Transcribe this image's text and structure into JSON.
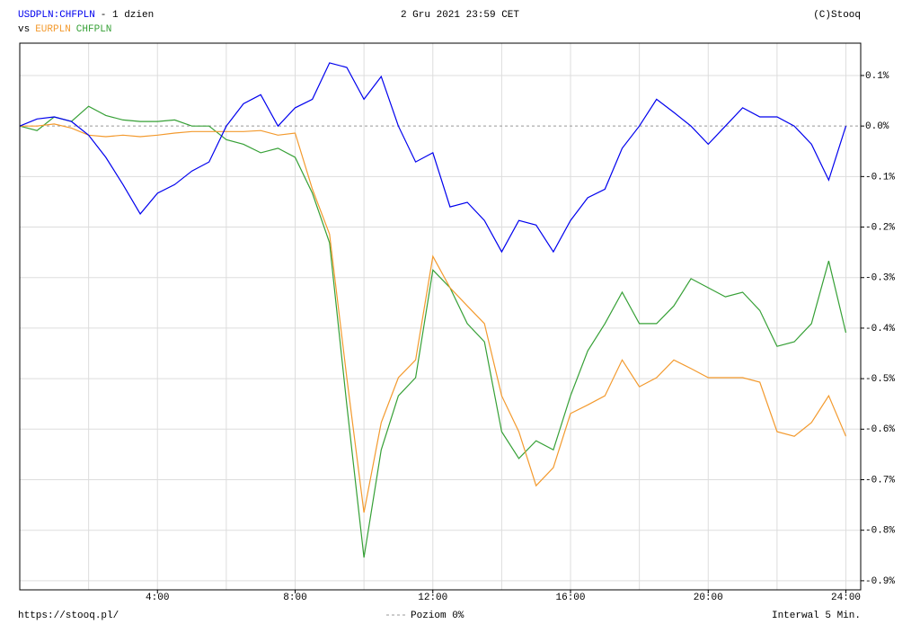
{
  "chart_data": {
    "type": "line",
    "title": "- 1 dzien",
    "vs_label": "vs",
    "date": "2 Gru 2021 23:59 CET",
    "source": "(C)Stooq",
    "url": "https://stooq.pl/",
    "interval": "Interwal 5 Min.",
    "zero_line": {
      "label": "Poziom 0%",
      "value": 0
    },
    "xlim": [
      0,
      24.43
    ],
    "ylim": [
      -0.918,
      0.164
    ],
    "xticks": [
      {
        "value": 4,
        "label": "4:00"
      },
      {
        "value": 8,
        "label": "8:00"
      },
      {
        "value": 12,
        "label": "12:00"
      },
      {
        "value": 16,
        "label": "16:00"
      },
      {
        "value": 20,
        "label": "20:00"
      },
      {
        "value": 24,
        "label": "24:00"
      }
    ],
    "xminor": [
      2,
      6,
      10,
      14,
      18,
      22
    ],
    "yticks": [
      {
        "value": 0.1,
        "label": "0.1%"
      },
      {
        "value": 0,
        "label": "0.0%"
      },
      {
        "value": -0.1,
        "label": "-0.1%"
      },
      {
        "value": -0.2,
        "label": "-0.2%"
      },
      {
        "value": -0.3,
        "label": "-0.3%"
      },
      {
        "value": -0.4,
        "label": "-0.4%"
      },
      {
        "value": -0.5,
        "label": "-0.5%"
      },
      {
        "value": -0.6,
        "label": "-0.6%"
      },
      {
        "value": -0.7,
        "label": "-0.7%"
      },
      {
        "value": -0.8,
        "label": "-0.8%"
      },
      {
        "value": -0.9,
        "label": "-0.9%"
      }
    ],
    "grid": true,
    "x": [
      0,
      0.5,
      1,
      1.5,
      2,
      2.5,
      3,
      3.5,
      4,
      4.5,
      5,
      5.5,
      6,
      6.5,
      7,
      7.5,
      8,
      8.5,
      9,
      9.5,
      10,
      10.5,
      11,
      11.5,
      12,
      12.5,
      13,
      13.5,
      14,
      14.5,
      15,
      15.5,
      16,
      16.5,
      17,
      17.5,
      18,
      18.5,
      19,
      19.5,
      20,
      20.5,
      21,
      21.5,
      22,
      22.5,
      23,
      23.5,
      24
    ],
    "series": [
      {
        "name": "USDPLN:CHFPLN",
        "color": "#0000ee",
        "values": [
          0,
          0.014,
          0.018,
          0.009,
          -0.018,
          -0.062,
          -0.116,
          -0.174,
          -0.133,
          -0.116,
          -0.089,
          -0.071,
          0,
          0.044,
          0.062,
          0,
          0.036,
          0.053,
          0.125,
          0.116,
          0.053,
          0.098,
          0,
          -0.071,
          -0.053,
          -0.16,
          -0.151,
          -0.187,
          -0.249,
          -0.187,
          -0.196,
          -0.249,
          -0.187,
          -0.142,
          -0.125,
          -0.044,
          0,
          0.053,
          0.027,
          0,
          -0.036,
          0,
          0.036,
          0.018,
          0.018,
          0,
          -0.036,
          -0.107,
          0
        ]
      },
      {
        "name": "EURPLN",
        "color": "#f39a2e",
        "values": [
          0,
          0,
          0.004,
          -0.004,
          -0.018,
          -0.021,
          -0.018,
          -0.021,
          -0.018,
          -0.014,
          -0.011,
          -0.011,
          -0.011,
          -0.011,
          -0.009,
          -0.018,
          -0.014,
          -0.125,
          -0.214,
          -0.498,
          -0.765,
          -0.587,
          -0.498,
          -0.463,
          -0.258,
          -0.32,
          -0.356,
          -0.391,
          -0.534,
          -0.605,
          -0.712,
          -0.676,
          -0.569,
          -0.552,
          -0.534,
          -0.463,
          -0.516,
          -0.498,
          -0.463,
          -0.48,
          -0.498,
          -0.498,
          -0.498,
          -0.507,
          -0.605,
          -0.614,
          -0.587,
          -0.534,
          -0.614
        ]
      },
      {
        "name": "CHFPLN",
        "color": "#36a036",
        "values": [
          0,
          -0.009,
          0.018,
          0.009,
          0.039,
          0.021,
          0.012,
          0.009,
          0.009,
          0.012,
          0,
          0,
          -0.027,
          -0.036,
          -0.053,
          -0.044,
          -0.062,
          -0.133,
          -0.231,
          -0.552,
          -0.854,
          -0.641,
          -0.534,
          -0.498,
          -0.285,
          -0.32,
          -0.391,
          -0.427,
          -0.605,
          -0.658,
          -0.623,
          -0.641,
          -0.534,
          -0.445,
          -0.391,
          -0.329,
          -0.391,
          -0.391,
          -0.356,
          -0.302,
          -0.32,
          -0.338,
          -0.329,
          -0.365,
          -0.436,
          -0.427,
          -0.391,
          -0.267,
          -0.409
        ]
      }
    ]
  }
}
